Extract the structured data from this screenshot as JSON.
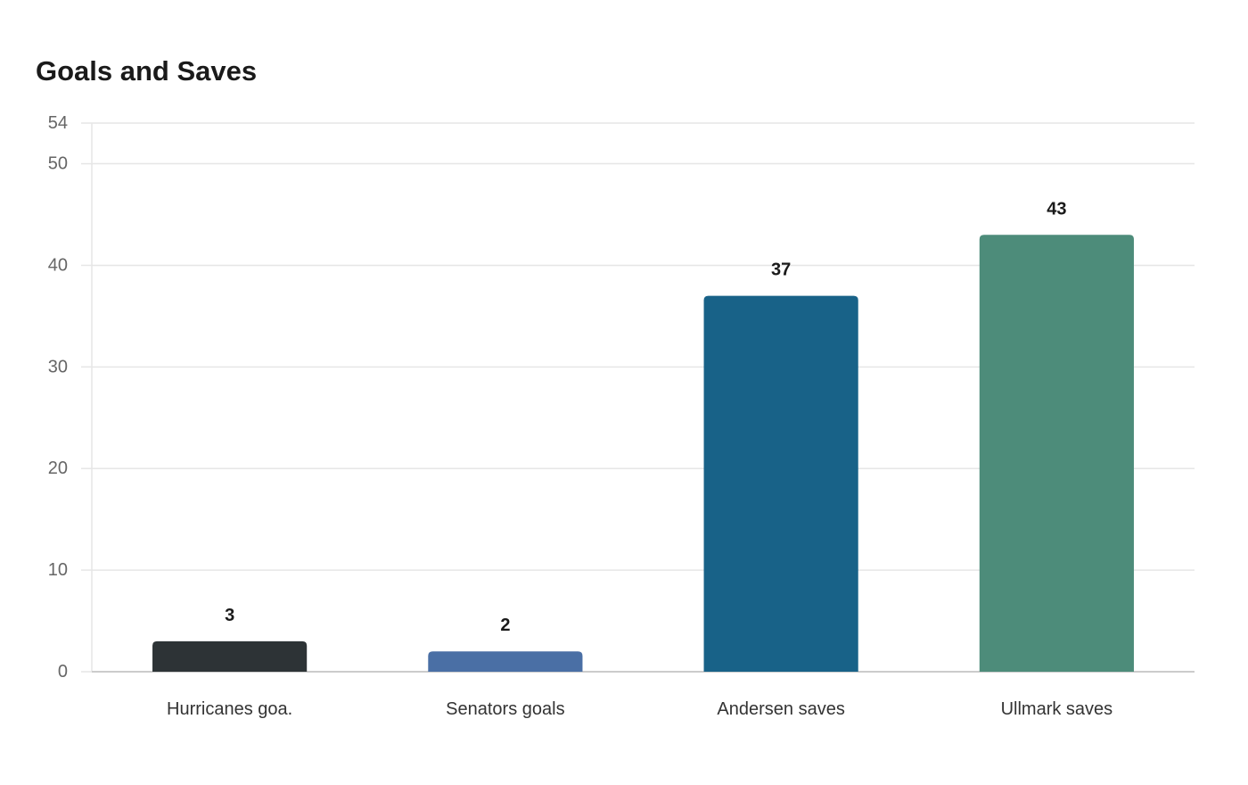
{
  "chart_data": {
    "type": "bar",
    "title": "Goals and Saves",
    "xlabel": "",
    "ylabel": "",
    "categories": [
      "Hurricanes goa.",
      "Senators goals",
      "Andersen saves",
      "Ullmark saves"
    ],
    "values": [
      3,
      2,
      37,
      43
    ],
    "value_labels": [
      "3",
      "2",
      "37",
      "43"
    ],
    "colors": [
      "#2d3336",
      "#4a6fa5",
      "#186288",
      "#4d8c7a"
    ],
    "ylim": [
      0,
      54
    ],
    "yticks": [
      0,
      10,
      20,
      30,
      40,
      50,
      54
    ],
    "ytick_labels": [
      "0",
      "10",
      "20",
      "30",
      "40",
      "50",
      "54"
    ],
    "grid": true,
    "gridline_color": "#e6e6e6",
    "axis_color": "#cccccc",
    "legend": "none"
  }
}
